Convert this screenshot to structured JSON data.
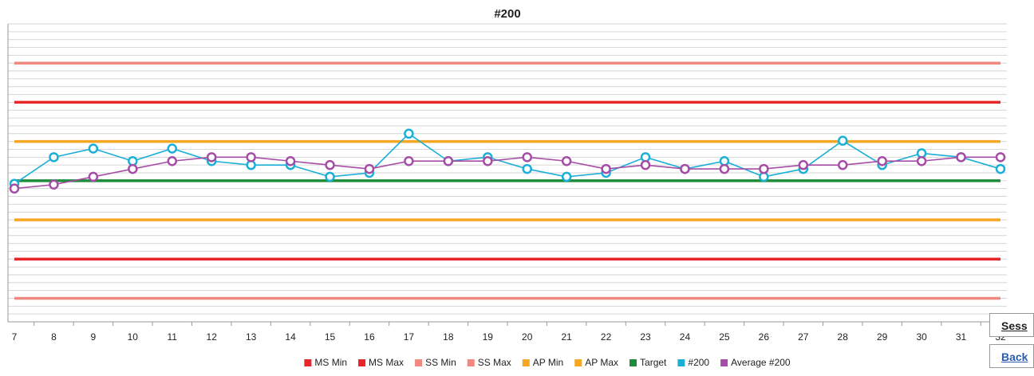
{
  "chart_data": {
    "type": "line",
    "title": "#200",
    "categories": [
      "7",
      "8",
      "9",
      "10",
      "11",
      "12",
      "13",
      "14",
      "15",
      "16",
      "17",
      "18",
      "19",
      "20",
      "21",
      "22",
      "23",
      "24",
      "25",
      "26",
      "27",
      "28",
      "29",
      "30",
      "31",
      "32"
    ],
    "ylim": [
      -18,
      20
    ],
    "yticks": [
      -18,
      -17,
      -16,
      -15,
      -14,
      -13,
      -12,
      -11,
      -10,
      -9,
      -8,
      -7,
      -6,
      -5,
      -4,
      -3,
      -2,
      -1,
      0,
      1,
      2,
      3,
      4,
      5,
      6,
      7,
      8,
      9,
      10,
      11,
      12,
      13,
      14,
      15,
      16,
      17,
      18,
      19,
      20
    ],
    "grid": true,
    "legend": "bottom",
    "series": [
      {
        "name": "MS Min",
        "color": "#e8262a",
        "values": [
          -10,
          -10,
          -10,
          -10,
          -10,
          -10,
          -10,
          -10,
          -10,
          -10,
          -10,
          -10,
          -10,
          -10,
          -10,
          -10,
          -10,
          -10,
          -10,
          -10,
          -10,
          -10,
          -10,
          -10,
          -10,
          -10
        ]
      },
      {
        "name": "MS Max",
        "color": "#e8262a",
        "values": [
          10,
          10,
          10,
          10,
          10,
          10,
          10,
          10,
          10,
          10,
          10,
          10,
          10,
          10,
          10,
          10,
          10,
          10,
          10,
          10,
          10,
          10,
          10,
          10,
          10,
          10
        ]
      },
      {
        "name": "SS Min",
        "color": "#f08a80",
        "values": [
          -15,
          -15,
          -15,
          -15,
          -15,
          -15,
          -15,
          -15,
          -15,
          -15,
          -15,
          -15,
          -15,
          -15,
          -15,
          -15,
          -15,
          -15,
          -15,
          -15,
          -15,
          -15,
          -15,
          -15,
          -15,
          -15
        ]
      },
      {
        "name": "SS Max",
        "color": "#f08a80",
        "values": [
          15,
          15,
          15,
          15,
          15,
          15,
          15,
          15,
          15,
          15,
          15,
          15,
          15,
          15,
          15,
          15,
          15,
          15,
          15,
          15,
          15,
          15,
          15,
          15,
          15,
          15
        ]
      },
      {
        "name": "AP Min",
        "color": "#f5a623",
        "values": [
          -5,
          -5,
          -5,
          -5,
          -5,
          -5,
          -5,
          -5,
          -5,
          -5,
          -5,
          -5,
          -5,
          -5,
          -5,
          -5,
          -5,
          -5,
          -5,
          -5,
          -5,
          -5,
          -5,
          -5,
          -5,
          -5
        ]
      },
      {
        "name": "AP Max",
        "color": "#f5a623",
        "values": [
          5,
          5,
          5,
          5,
          5,
          5,
          5,
          5,
          5,
          5,
          5,
          5,
          5,
          5,
          5,
          5,
          5,
          5,
          5,
          5,
          5,
          5,
          5,
          5,
          5,
          5
        ]
      },
      {
        "name": "Target",
        "color": "#1e8c3a",
        "values": [
          0,
          0,
          0,
          0,
          0,
          0,
          0,
          0,
          0,
          0,
          0,
          0,
          0,
          0,
          0,
          0,
          0,
          0,
          0,
          0,
          0,
          0,
          0,
          0,
          0,
          0
        ]
      },
      {
        "name": "#200",
        "color": "#1aafd6",
        "marker": "circle",
        "values": [
          -0.4,
          3.0,
          4.1,
          2.5,
          4.1,
          2.5,
          2.0,
          2.0,
          0.5,
          1.0,
          6.0,
          2.5,
          3.0,
          1.5,
          0.5,
          1.0,
          3.0,
          1.5,
          2.5,
          0.5,
          1.5,
          5.1,
          2.0,
          3.5,
          3.0,
          1.5
        ]
      },
      {
        "name": "Average #200",
        "color": "#a64ca6",
        "marker": "circle",
        "values": [
          -1.0,
          -0.5,
          0.5,
          1.5,
          2.5,
          3.0,
          3.0,
          2.5,
          2.0,
          1.5,
          2.5,
          2.5,
          2.5,
          3.0,
          2.5,
          1.5,
          2.0,
          1.5,
          1.5,
          1.5,
          2.0,
          2.0,
          2.5,
          2.5,
          3.0,
          3.0
        ]
      }
    ]
  },
  "buttons": [
    "Sess",
    "Back"
  ]
}
